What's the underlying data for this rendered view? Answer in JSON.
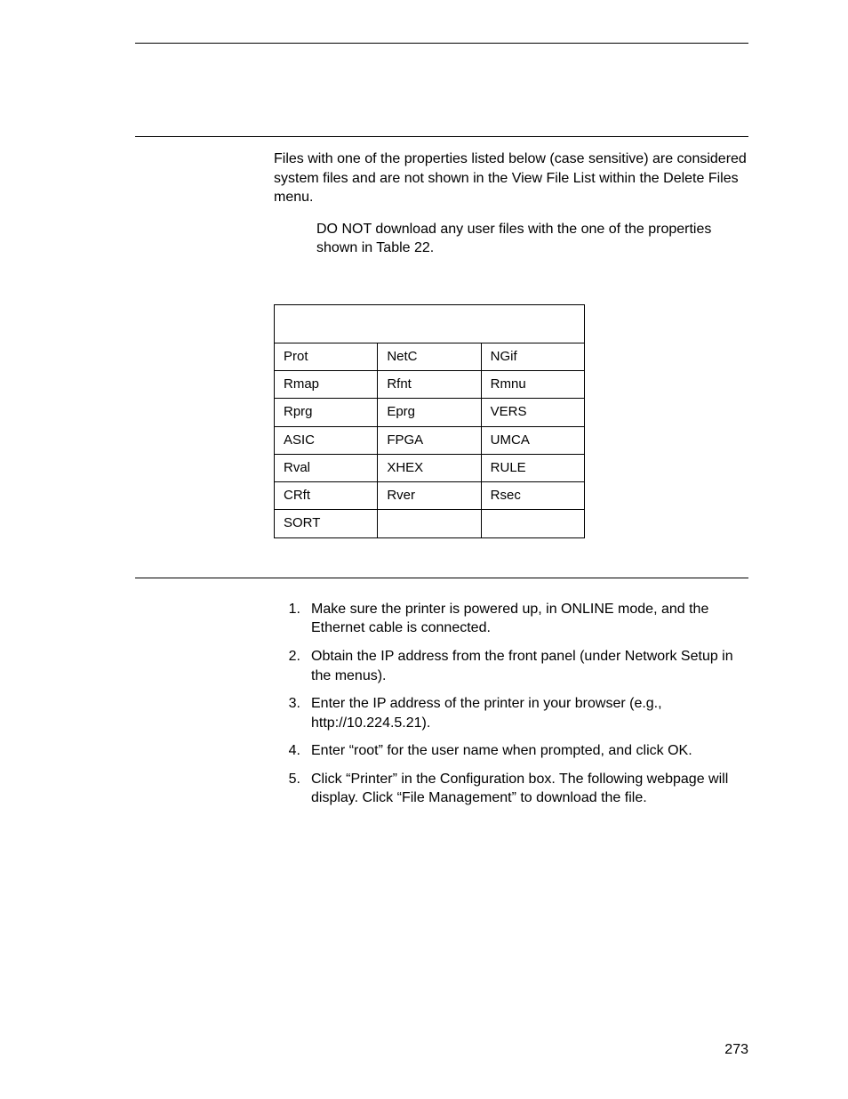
{
  "intro": {
    "para1": "Files with one of the properties listed below (case sensitive) are considered system files and are not shown in the View File List within the Delete Files menu.",
    "note": "DO NOT download any user files with the one of the properties shown in Table 22."
  },
  "table": {
    "rows": [
      [
        "Prot",
        "NetC",
        "NGif"
      ],
      [
        "Rmap",
        "Rfnt",
        "Rmnu"
      ],
      [
        "Rprg",
        "Eprg",
        "VERS"
      ],
      [
        "ASIC",
        "FPGA",
        "UMCA"
      ],
      [
        "Rval",
        "XHEX",
        "RULE"
      ],
      [
        "CRft",
        "Rver",
        "Rsec"
      ],
      [
        "SORT",
        "",
        ""
      ]
    ]
  },
  "steps": [
    {
      "n": "1.",
      "t": "Make sure the printer is powered up, in ONLINE mode, and the Ethernet cable is connected."
    },
    {
      "n": "2.",
      "t": "Obtain the IP address from the front panel (under Network Setup in the menus)."
    },
    {
      "n": "3.",
      "t": "Enter the IP address of the printer in your browser (e.g., http://10.224.5.21)."
    },
    {
      "n": "4.",
      "t": "Enter “root” for the user name when prompted, and click OK."
    },
    {
      "n": "5.",
      "t": "Click “Printer” in the Configuration box. The following webpage will display. Click “File Management” to download the file."
    }
  ],
  "page_number": "273"
}
